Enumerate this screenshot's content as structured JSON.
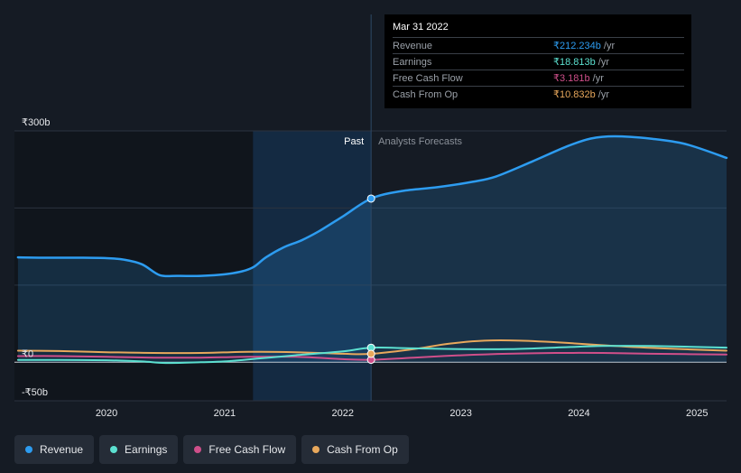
{
  "chart_data": {
    "type": "line",
    "y_ticks": [
      {
        "value": 300,
        "label": "₹300b"
      },
      {
        "value": 0,
        "label": "₹0"
      },
      {
        "value": -50,
        "label": "-₹50b"
      }
    ],
    "ylim": [
      -50,
      300
    ],
    "grid": true,
    "x_ticks": [
      2020,
      2021,
      2022,
      2023,
      2024,
      2025
    ],
    "xlim": [
      2019.22,
      2025.25
    ],
    "divider_x": 2022.24,
    "shade_start_x": 2021.24,
    "past_label": "Past",
    "forecast_label": "Analysts Forecasts",
    "series": [
      {
        "name": "Revenue",
        "color": "#2d9cf0",
        "points": [
          [
            2019.25,
            136
          ],
          [
            2019.5,
            135.5
          ],
          [
            2019.75,
            135.5
          ],
          [
            2020.0,
            135
          ],
          [
            2020.15,
            133
          ],
          [
            2020.3,
            127
          ],
          [
            2020.45,
            113
          ],
          [
            2020.6,
            112
          ],
          [
            2020.8,
            112
          ],
          [
            2021.0,
            114
          ],
          [
            2021.15,
            118
          ],
          [
            2021.25,
            124
          ],
          [
            2021.35,
            136
          ],
          [
            2021.5,
            149
          ],
          [
            2021.65,
            158
          ],
          [
            2021.8,
            170
          ],
          [
            2022.0,
            189
          ],
          [
            2022.24,
            212.234
          ],
          [
            2022.5,
            222
          ],
          [
            2022.8,
            227
          ],
          [
            2023.1,
            234
          ],
          [
            2023.3,
            241
          ],
          [
            2023.6,
            260
          ],
          [
            2023.9,
            280
          ],
          [
            2024.1,
            290
          ],
          [
            2024.3,
            293
          ],
          [
            2024.6,
            290
          ],
          [
            2024.9,
            283
          ],
          [
            2025.25,
            265
          ]
        ]
      },
      {
        "name": "Earnings",
        "color": "#5ce0d0",
        "points": [
          [
            2019.25,
            3
          ],
          [
            2019.6,
            3
          ],
          [
            2020.0,
            2.5
          ],
          [
            2020.3,
            1
          ],
          [
            2020.5,
            -1
          ],
          [
            2020.8,
            0
          ],
          [
            2021.0,
            1
          ],
          [
            2021.3,
            5
          ],
          [
            2021.6,
            9
          ],
          [
            2022.0,
            14
          ],
          [
            2022.24,
            18.813
          ],
          [
            2022.6,
            18
          ],
          [
            2023.0,
            17
          ],
          [
            2023.4,
            17
          ],
          [
            2023.8,
            19
          ],
          [
            2024.2,
            21
          ],
          [
            2024.6,
            21
          ],
          [
            2025.25,
            19
          ]
        ]
      },
      {
        "name": "Free Cash Flow",
        "color": "#cf4f8a",
        "points": [
          [
            2019.25,
            8
          ],
          [
            2019.6,
            8
          ],
          [
            2020.0,
            7
          ],
          [
            2020.4,
            6
          ],
          [
            2020.8,
            6
          ],
          [
            2021.2,
            7
          ],
          [
            2021.6,
            7
          ],
          [
            2022.0,
            4
          ],
          [
            2022.24,
            3.181
          ],
          [
            2022.6,
            6
          ],
          [
            2023.0,
            9
          ],
          [
            2023.4,
            11
          ],
          [
            2023.8,
            12
          ],
          [
            2024.2,
            12
          ],
          [
            2024.6,
            11
          ],
          [
            2025.25,
            10
          ]
        ]
      },
      {
        "name": "Cash From Op",
        "color": "#e8a85c",
        "points": [
          [
            2019.25,
            15
          ],
          [
            2019.6,
            14.5
          ],
          [
            2020.0,
            13
          ],
          [
            2020.4,
            12
          ],
          [
            2020.8,
            12
          ],
          [
            2021.2,
            13.5
          ],
          [
            2021.6,
            13
          ],
          [
            2022.0,
            11
          ],
          [
            2022.24,
            10.832
          ],
          [
            2022.6,
            17
          ],
          [
            2022.9,
            24
          ],
          [
            2023.2,
            28
          ],
          [
            2023.5,
            28
          ],
          [
            2023.9,
            25
          ],
          [
            2024.3,
            21
          ],
          [
            2024.7,
            18
          ],
          [
            2025.25,
            15
          ]
        ]
      }
    ],
    "markers_at": 2022.24
  },
  "tooltip": {
    "date": "Mar 31 2022",
    "rows": [
      {
        "label": "Revenue",
        "value": "₹212.234b",
        "unit": "/yr",
        "color": "#2d9cf0"
      },
      {
        "label": "Earnings",
        "value": "₹18.813b",
        "unit": "/yr",
        "color": "#5ce0d0"
      },
      {
        "label": "Free Cash Flow",
        "value": "₹3.181b",
        "unit": "/yr",
        "color": "#cf4f8a"
      },
      {
        "label": "Cash From Op",
        "value": "₹10.832b",
        "unit": "/yr",
        "color": "#e8a85c"
      }
    ]
  },
  "legend": [
    {
      "label": "Revenue",
      "color": "#2d9cf0"
    },
    {
      "label": "Earnings",
      "color": "#5ce0d0"
    },
    {
      "label": "Free Cash Flow",
      "color": "#cf4f8a"
    },
    {
      "label": "Cash From Op",
      "color": "#e8a85c"
    }
  ]
}
